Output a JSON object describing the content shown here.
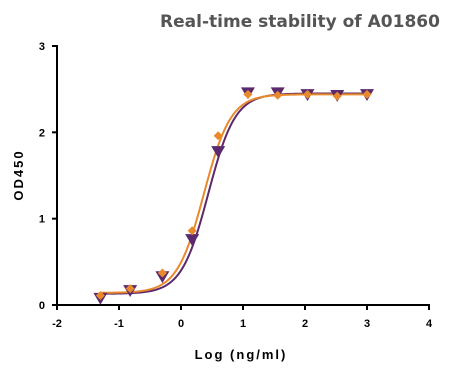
{
  "chart_data": {
    "type": "scatter",
    "title": "Real-time stability of A01860",
    "xlabel": "Log (ng/ml)",
    "ylabel": "OD450",
    "xlim": [
      -2,
      4
    ],
    "ylim": [
      0,
      3
    ],
    "x_ticks": [
      "-2",
      "-1",
      "0",
      "1",
      "2",
      "3",
      "4"
    ],
    "y_ticks": [
      "0",
      "1",
      "2",
      "3"
    ],
    "grid": false,
    "legend": "none",
    "series": [
      {
        "marker": "triangle-down",
        "color": "#5b2a6e",
        "x": [
          -1.3,
          -0.82,
          -0.3,
          0.18,
          0.6,
          1.08,
          1.56,
          2.04,
          2.52,
          3.0
        ],
        "y": [
          0.08,
          0.17,
          0.33,
          0.76,
          1.78,
          2.46,
          2.46,
          2.44,
          2.43,
          2.44
        ],
        "fit": {
          "bottom": 0.13,
          "top": 2.45,
          "logEC50": 0.44,
          "hill": 2.0
        }
      },
      {
        "marker": "diamond",
        "color": "#e8892b",
        "x": [
          -1.3,
          -0.82,
          -0.3,
          0.18,
          0.6,
          1.08,
          1.56,
          2.04,
          2.52,
          3.0
        ],
        "y": [
          0.11,
          0.19,
          0.37,
          0.86,
          1.96,
          2.44,
          2.43,
          2.44,
          2.42,
          2.44
        ],
        "fit": {
          "bottom": 0.14,
          "top": 2.44,
          "logEC50": 0.37,
          "hill": 2.0
        }
      }
    ]
  }
}
